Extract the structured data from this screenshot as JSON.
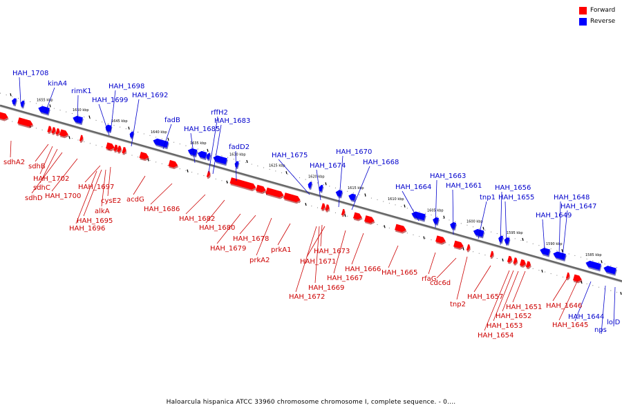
{
  "legend": [
    {
      "label": "Forward",
      "color": "#ff0000"
    },
    {
      "label": "Reverse",
      "color": "#0000ff"
    }
  ],
  "caption": "Haloarcula hispanica ATCC 33960 chromosome chromosome I, complete sequence. - 0....",
  "colors": {
    "forward": "#ff0000",
    "reverse": "#0000ff",
    "forward_label": "#cc0000",
    "reverse_label": "#0000cc",
    "axis": "#888888"
  },
  "kbp_ticks": [
    "1655 kbp",
    "1650 kbp",
    "1645 kbp",
    "1640 kbp",
    "1635 kbp",
    "1630 kbp",
    "1625 kbp",
    "1620 kbp",
    "1615 kbp",
    "1610 kbp",
    "1605 kbp",
    "1600 kbp",
    "1595 kbp",
    "1590 kbp",
    "1585 kbp"
  ],
  "reverse_genes": [
    "HAH_1708",
    "kinA4",
    "rimK1",
    "HAH_1698",
    "HAH_1699",
    "HAH_1692",
    "fadB",
    "HAH_1685",
    "rffH2",
    "HAH_1683",
    "fadD2",
    "HAH_1675",
    "HAH_1674",
    "HAH_1670",
    "HAH_1668",
    "HAH_1664",
    "HAH_1663",
    "HAH_1661",
    "tnp1",
    "HAH_1656",
    "HAH_1655",
    "HAH_1649",
    "HAH_1648",
    "HAH_1647",
    "HAH_1644",
    "nps",
    "lolD"
  ],
  "forward_genes": [
    "sdhA2",
    "sdhB",
    "HAH_1702",
    "sdhC",
    "sdhD",
    "HAH_1700",
    "HAH_1697",
    "cysE2",
    "alkA",
    "HAH_1695",
    "HAH_1696",
    "acdG",
    "HAH_1686",
    "HAH_1682",
    "HAH_1680",
    "HAH_1679",
    "HAH_1678",
    "prkA2",
    "prkA1",
    "HAH_1673",
    "HAH_1671",
    "HAH_1669",
    "HAH_1672",
    "HAH_1667",
    "HAH_1666",
    "HAH_1665",
    "rfaG",
    "cdc6d",
    "tnp2",
    "HAH_1657",
    "HAH_1651",
    "HAH_1652",
    "HAH_1653",
    "HAH_1654",
    "HAH_1646",
    "HAH_1645"
  ]
}
